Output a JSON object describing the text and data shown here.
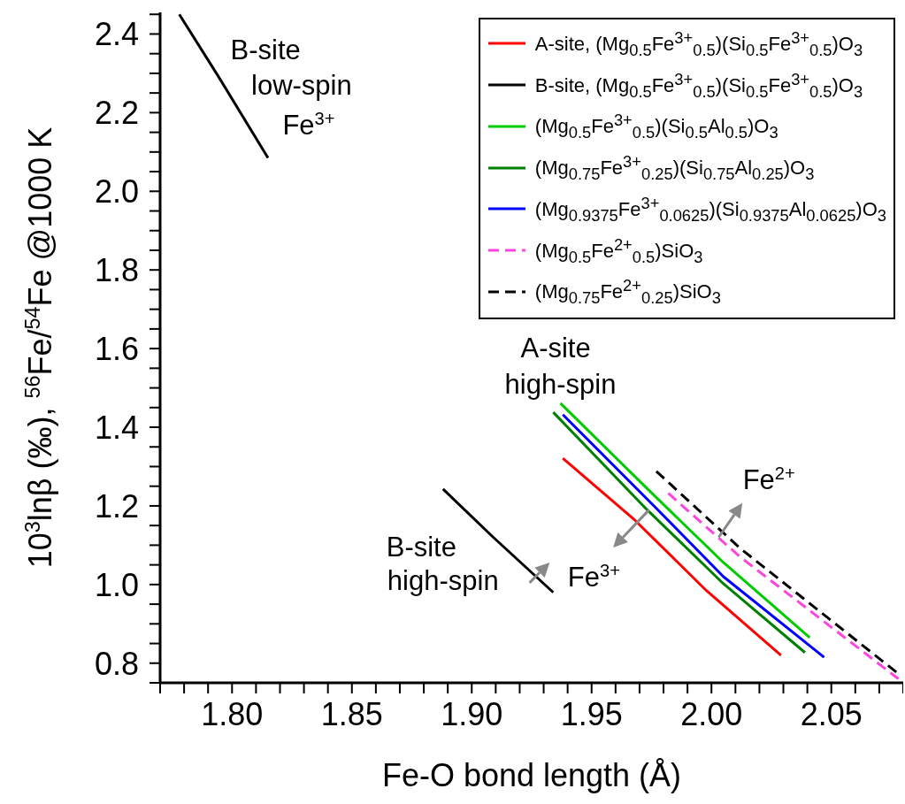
{
  "chart_data": {
    "type": "line",
    "xlabel": "Fe-O bond length (Å)",
    "ylabel": "10$^{3}$lnβ (‰), $^{56}$Fe/$^{54}$Fe @1000 K",
    "xlim": [
      1.77,
      2.08
    ],
    "ylim": [
      0.75,
      2.455
    ],
    "xticks": [
      {
        "value": 1.77,
        "label": null
      },
      {
        "value": 1.78,
        "label": null
      },
      {
        "value": 1.79,
        "label": null
      },
      {
        "value": 1.8,
        "label": "1.80"
      },
      {
        "value": 1.81,
        "label": null
      },
      {
        "value": 1.82,
        "label": null
      },
      {
        "value": 1.83,
        "label": null
      },
      {
        "value": 1.84,
        "label": null
      },
      {
        "value": 1.85,
        "label": "1.85"
      },
      {
        "value": 1.86,
        "label": null
      },
      {
        "value": 1.87,
        "label": null
      },
      {
        "value": 1.88,
        "label": null
      },
      {
        "value": 1.89,
        "label": null
      },
      {
        "value": 1.9,
        "label": "1.90"
      },
      {
        "value": 1.91,
        "label": null
      },
      {
        "value": 1.92,
        "label": null
      },
      {
        "value": 1.93,
        "label": null
      },
      {
        "value": 1.94,
        "label": null
      },
      {
        "value": 1.95,
        "label": "1.95"
      },
      {
        "value": 1.96,
        "label": null
      },
      {
        "value": 1.97,
        "label": null
      },
      {
        "value": 1.98,
        "label": null
      },
      {
        "value": 1.99,
        "label": null
      },
      {
        "value": 2.0,
        "label": "2.00"
      },
      {
        "value": 2.01,
        "label": null
      },
      {
        "value": 2.02,
        "label": null
      },
      {
        "value": 2.03,
        "label": null
      },
      {
        "value": 2.04,
        "label": null
      },
      {
        "value": 2.05,
        "label": "2.05"
      },
      {
        "value": 2.06,
        "label": null
      },
      {
        "value": 2.07,
        "label": null
      },
      {
        "value": 2.08,
        "label": null
      }
    ],
    "yticks": [
      {
        "value": 0.75,
        "label": null
      },
      {
        "value": 0.8,
        "label": "0.8"
      },
      {
        "value": 0.85,
        "label": null
      },
      {
        "value": 0.9,
        "label": null
      },
      {
        "value": 0.95,
        "label": null
      },
      {
        "value": 1.0,
        "label": "1.0"
      },
      {
        "value": 1.05,
        "label": null
      },
      {
        "value": 1.1,
        "label": null
      },
      {
        "value": 1.15,
        "label": null
      },
      {
        "value": 1.2,
        "label": "1.2"
      },
      {
        "value": 1.25,
        "label": null
      },
      {
        "value": 1.3,
        "label": null
      },
      {
        "value": 1.35,
        "label": null
      },
      {
        "value": 1.4,
        "label": "1.4"
      },
      {
        "value": 1.45,
        "label": null
      },
      {
        "value": 1.5,
        "label": null
      },
      {
        "value": 1.55,
        "label": null
      },
      {
        "value": 1.6,
        "label": "1.6"
      },
      {
        "value": 1.65,
        "label": null
      },
      {
        "value": 1.7,
        "label": null
      },
      {
        "value": 1.75,
        "label": null
      },
      {
        "value": 1.8,
        "label": "1.8"
      },
      {
        "value": 1.85,
        "label": null
      },
      {
        "value": 1.9,
        "label": null
      },
      {
        "value": 1.95,
        "label": null
      },
      {
        "value": 2.0,
        "label": "2.0"
      },
      {
        "value": 2.05,
        "label": null
      },
      {
        "value": 2.1,
        "label": null
      },
      {
        "value": 2.15,
        "label": null
      },
      {
        "value": 2.2,
        "label": "2.2"
      },
      {
        "value": 2.25,
        "label": null
      },
      {
        "value": 2.3,
        "label": null
      },
      {
        "value": 2.35,
        "label": null
      },
      {
        "value": 2.4,
        "label": "2.4"
      },
      {
        "value": 2.45,
        "label": null
      }
    ],
    "grid": false,
    "legend": "top right",
    "marker": "none",
    "series": [
      {
        "name": "A-site, (Mg$_{0.5}$Fe$^{3+}$$_{0.5}$)(Si$_{0.5}$Fe$^{3+}$$_{0.5}$)O$_{3}$",
        "color": "#ff0000",
        "x": [
          1.938,
          1.968,
          1.998,
          2.029
        ],
        "values": [
          1.321,
          1.164,
          0.984,
          0.82
        ]
      },
      {
        "name": "B-site, (Mg$_{0.5}$Fe$^{3+}$$_{0.5}$)(Si$_{0.5}$Fe$^{3+}$$_{0.5}$)O$_{3}$",
        "color": "#000000",
        "x": [
          1.778,
          1.794,
          1.815,
          1.85,
          1.888,
          1.909,
          1.934
        ],
        "values": [
          2.45,
          2.295,
          2.085,
          null,
          1.243,
          1.12,
          0.98
        ]
      },
      {
        "name": "(Mg$_{0.5}$Fe$^{3+}$$_{0.5}$)(Si$_{0.5}$Al$_{0.5}$)O$_{3}$",
        "color": "#00cc00",
        "x": [
          1.937,
          1.976,
          2.005,
          2.041
        ],
        "values": [
          1.461,
          1.227,
          1.056,
          0.865
        ]
      },
      {
        "name": "(Mg$_{0.75}$Fe$^{3+}$$_{0.25}$)(Si$_{0.75}$Al$_{0.25}$)O$_{3}$",
        "color": "#008000",
        "x": [
          1.934,
          1.973,
          2.005,
          2.039
        ],
        "values": [
          1.438,
          1.191,
          1.002,
          0.827
        ]
      },
      {
        "name": "(Mg$_{0.9375}$Fe$^{3+}$$_{0.0625}$)(Si$_{0.9375}$Al$_{0.0625}$)O$_{3}$",
        "color": "#0000ff",
        "x": [
          1.938,
          1.976,
          2.005,
          2.047
        ],
        "values": [
          1.432,
          1.2,
          1.02,
          0.815
        ]
      },
      {
        "name": "(Mg$_{0.5}$Fe$^{2+}$$_{0.5}$)SiO$_{3}$",
        "color": "#ff44dd",
        "line_style": "dashed",
        "x": [
          1.982,
          2.012,
          2.078
        ],
        "values": [
          1.232,
          1.07,
          0.76
        ]
      },
      {
        "name": "(Mg$_{0.75}$Fe$^{2+}$$_{0.25}$)SiO$_{3}$",
        "color": "#000000",
        "line_style": "dashed",
        "x": [
          1.977,
          2.012,
          2.078
        ],
        "values": [
          1.288,
          1.092,
          0.773
        ]
      }
    ],
    "annotations": [
      "B-site",
      "low-spin",
      "Fe$^{3+}$",
      "A-site",
      "high-spin",
      "B-site",
      "high-spin",
      {
        "text": "Fe$^{3+}$",
        "x": 1.974,
        "y": 1.19
      },
      {
        "text": "Fe$^{2+}$",
        "x": 2.003,
        "y": 1.12
      }
    ]
  }
}
